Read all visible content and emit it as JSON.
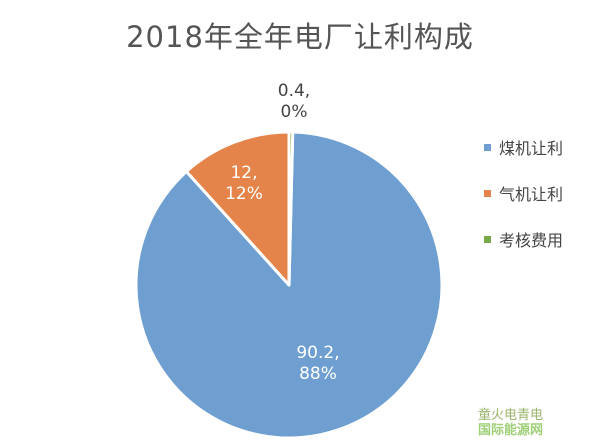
{
  "chart_data": {
    "type": "pie",
    "title": "2018年全年电厂让利构成",
    "slices": [
      {
        "label": "煤机让利",
        "value": 90.2,
        "percent_label": "88%",
        "color": "#6f9fd1"
      },
      {
        "label": "气机让利",
        "value": 12,
        "percent_label": "12%",
        "color": "#e5844a"
      },
      {
        "label": "考核费用",
        "value": 0.4,
        "percent_label": "0%",
        "color": "#78a94a"
      }
    ],
    "legend_position": "right",
    "data_labels": [
      "90.2,\n88%",
      "12,\n12%",
      "0.4,\n0%"
    ]
  },
  "watermark": {
    "line1": "童火电青电",
    "line2": "国际能源网"
  }
}
